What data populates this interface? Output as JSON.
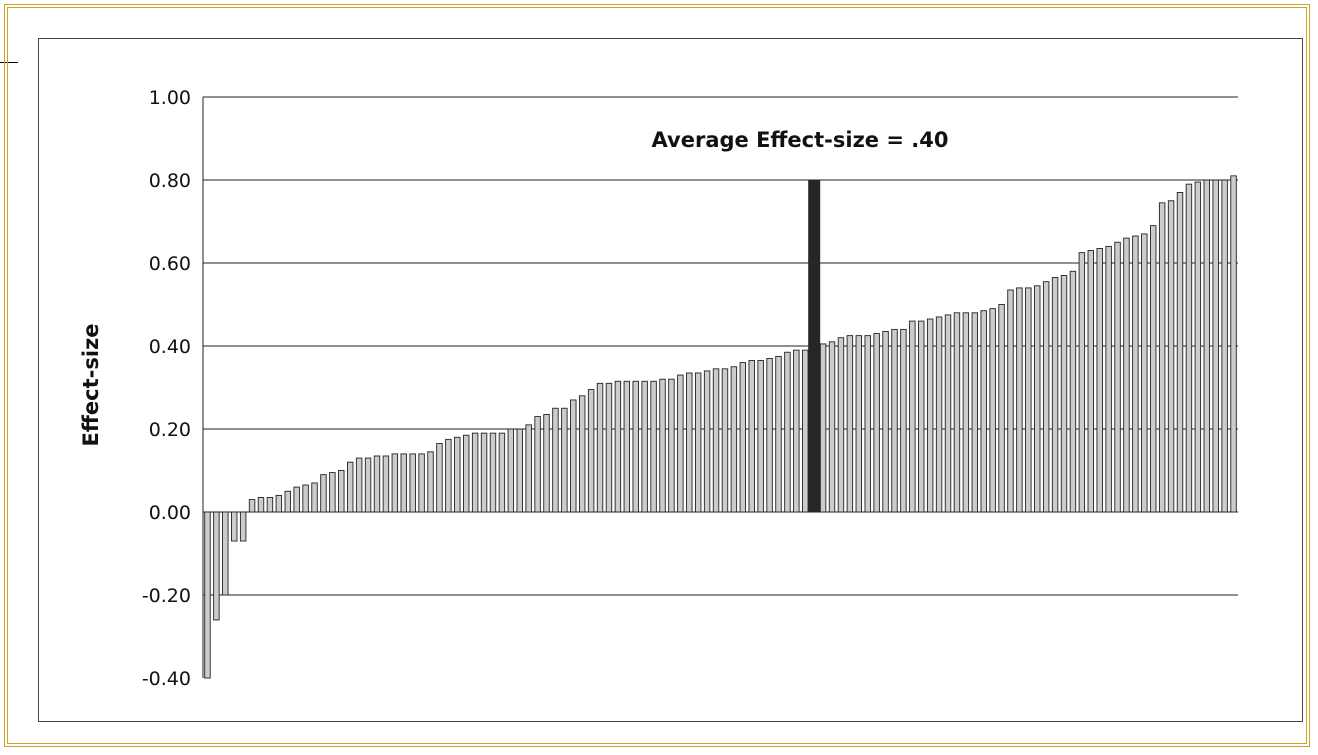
{
  "chart_data": {
    "type": "bar",
    "title": "",
    "xlabel": "",
    "ylabel": "Effect-size",
    "ylim": [
      -0.4,
      1.0
    ],
    "yticks": [
      "1.00",
      "0.80",
      "0.60",
      "0.40",
      "0.20",
      "0.00",
      "-0.20",
      "-0.40"
    ],
    "grid": true,
    "legend": "none",
    "annotation": "Average Effect-size = .40",
    "highlight": {
      "value": 0.8,
      "color": "#262626"
    },
    "bar_color": "#cccccc",
    "bar_outline": "#222222",
    "values": [
      -0.4,
      -0.26,
      -0.2,
      -0.07,
      -0.07,
      0.03,
      0.035,
      0.035,
      0.04,
      0.05,
      0.06,
      0.065,
      0.07,
      0.09,
      0.095,
      0.1,
      0.12,
      0.13,
      0.13,
      0.135,
      0.135,
      0.14,
      0.14,
      0.14,
      0.14,
      0.145,
      0.165,
      0.175,
      0.18,
      0.185,
      0.19,
      0.19,
      0.19,
      0.19,
      0.2,
      0.2,
      0.21,
      0.23,
      0.235,
      0.25,
      0.25,
      0.27,
      0.28,
      0.295,
      0.31,
      0.31,
      0.315,
      0.315,
      0.315,
      0.315,
      0.315,
      0.32,
      0.32,
      0.33,
      0.335,
      0.335,
      0.34,
      0.345,
      0.345,
      0.35,
      0.36,
      0.365,
      0.365,
      0.37,
      0.375,
      0.385,
      0.39,
      0.39,
      0.4,
      0.405,
      0.41,
      0.42,
      0.425,
      0.425,
      0.425,
      0.43,
      0.435,
      0.44,
      0.44,
      0.46,
      0.46,
      0.465,
      0.47,
      0.475,
      0.48,
      0.48,
      0.48,
      0.485,
      0.49,
      0.5,
      0.535,
      0.54,
      0.54,
      0.545,
      0.555,
      0.565,
      0.57,
      0.58,
      0.625,
      0.63,
      0.635,
      0.64,
      0.65,
      0.66,
      0.665,
      0.67,
      0.69,
      0.745,
      0.75,
      0.77,
      0.79,
      0.795,
      0.8,
      0.8,
      0.8,
      0.81
    ]
  }
}
